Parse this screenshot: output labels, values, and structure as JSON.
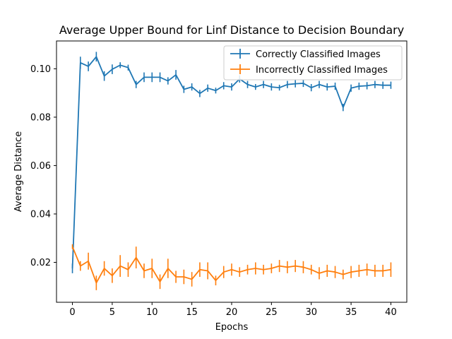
{
  "chart_data": {
    "type": "line",
    "title": "Average Upper Bound for Linf Distance to Decision Boundary",
    "xlabel": "Epochs",
    "ylabel": "Average Distance",
    "xlim": [
      -2,
      42
    ],
    "ylim": [
      0.0035,
      0.1115
    ],
    "x_ticks": [
      0,
      5,
      10,
      15,
      20,
      25,
      30,
      35,
      40
    ],
    "y_ticks": [
      0.02,
      0.04,
      0.06,
      0.08,
      0.1
    ],
    "y_tick_labels": [
      "0.02",
      "0.04",
      "0.06",
      "0.08",
      "0.10"
    ],
    "grid": false,
    "legend_position": "upper-right",
    "x": [
      0,
      1,
      2,
      3,
      4,
      5,
      6,
      7,
      8,
      9,
      10,
      11,
      12,
      13,
      14,
      15,
      16,
      17,
      18,
      19,
      20,
      21,
      22,
      23,
      24,
      25,
      26,
      27,
      28,
      29,
      30,
      31,
      32,
      33,
      34,
      35,
      36,
      37,
      38,
      39,
      40
    ],
    "series": [
      {
        "name": "Correctly Classified Images",
        "color": "#1f77b4",
        "values": [
          0.0175,
          0.1025,
          0.101,
          0.105,
          0.097,
          0.0998,
          0.1015,
          0.1005,
          0.0935,
          0.0965,
          0.0965,
          0.0965,
          0.095,
          0.0975,
          0.0915,
          0.0925,
          0.0898,
          0.092,
          0.091,
          0.093,
          0.0925,
          0.0958,
          0.0935,
          0.0925,
          0.0935,
          0.0925,
          0.0922,
          0.0935,
          0.0938,
          0.094,
          0.0922,
          0.0935,
          0.0925,
          0.0928,
          0.084,
          0.092,
          0.0928,
          0.093,
          0.0935,
          0.0932,
          0.0932
        ],
        "errors": [
          0.002,
          0.0025,
          0.002,
          0.002,
          0.002,
          0.002,
          0.0012,
          0.0012,
          0.0015,
          0.002,
          0.002,
          0.002,
          0.0015,
          0.002,
          0.0015,
          0.0015,
          0.0015,
          0.0015,
          0.0012,
          0.0015,
          0.0015,
          0.0015,
          0.0015,
          0.0012,
          0.0015,
          0.0015,
          0.0012,
          0.0015,
          0.0015,
          0.0015,
          0.0015,
          0.0015,
          0.0015,
          0.0015,
          0.0015,
          0.0015,
          0.0015,
          0.0015,
          0.0015,
          0.0015,
          0.0015
        ]
      },
      {
        "name": "Incorrectly Classified Images",
        "color": "#ff7f0e",
        "values": [
          0.0265,
          0.0185,
          0.0205,
          0.0115,
          0.0175,
          0.0145,
          0.0185,
          0.017,
          0.022,
          0.0165,
          0.0175,
          0.012,
          0.0175,
          0.014,
          0.014,
          0.013,
          0.017,
          0.0165,
          0.0125,
          0.016,
          0.017,
          0.016,
          0.017,
          0.0175,
          0.017,
          0.0175,
          0.0185,
          0.018,
          0.0185,
          0.018,
          0.017,
          0.0155,
          0.0165,
          0.016,
          0.015,
          0.016,
          0.0165,
          0.017,
          0.0165,
          0.0165,
          0.017
        ],
        "errors": [
          0.001,
          0.002,
          0.0035,
          0.003,
          0.003,
          0.003,
          0.0045,
          0.003,
          0.0045,
          0.003,
          0.004,
          0.003,
          0.004,
          0.0025,
          0.003,
          0.003,
          0.003,
          0.0035,
          0.002,
          0.0025,
          0.0025,
          0.002,
          0.002,
          0.0025,
          0.002,
          0.002,
          0.0025,
          0.0025,
          0.0025,
          0.0025,
          0.002,
          0.0025,
          0.0025,
          0.0025,
          0.002,
          0.0025,
          0.0025,
          0.0025,
          0.0025,
          0.0025,
          0.003
        ]
      }
    ]
  }
}
